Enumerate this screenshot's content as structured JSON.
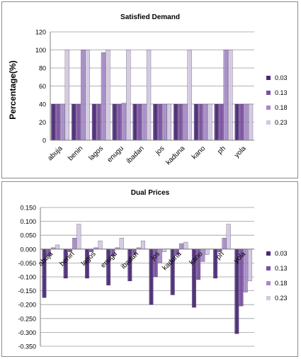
{
  "colors": {
    "s003": "#4a2a76",
    "s013": "#7a4f9e",
    "s018": "#a58bc7",
    "s023": "#d2c8e0",
    "grid": "#9a9a9a",
    "axis": "#7f7f7f"
  },
  "chart_data": [
    {
      "type": "bar",
      "title": "Satisfied Demand",
      "xlabel": "",
      "ylabel": "Percentage(%)",
      "ylim": [
        0,
        120
      ],
      "yticks": [
        "0",
        "20",
        "40",
        "60",
        "80",
        "100",
        "120"
      ],
      "grid": true,
      "legend": "right",
      "categories": [
        "abuja",
        "benin",
        "lagos",
        "enugu",
        "ibadan",
        "jos",
        "kaduna",
        "kano",
        "ph",
        "yola"
      ],
      "series": [
        {
          "name": "0.03",
          "values": [
            40,
            40,
            40,
            40,
            40,
            40,
            40,
            40,
            40,
            40
          ]
        },
        {
          "name": "0.13",
          "values": [
            40,
            40,
            40,
            40,
            40,
            40,
            40,
            40,
            40,
            40
          ]
        },
        {
          "name": "0.18",
          "values": [
            40,
            100,
            97,
            41,
            40,
            40,
            40,
            40,
            100,
            40
          ]
        },
        {
          "name": "0.23",
          "values": [
            100,
            100,
            100,
            100,
            100,
            40,
            100,
            40,
            100,
            40
          ]
        }
      ]
    },
    {
      "type": "bar",
      "title": "Dual Prices",
      "xlabel": "",
      "ylabel": "",
      "ylim": [
        -0.35,
        0.15
      ],
      "yticks": [
        "-0.350",
        "-0.300",
        "-0.250",
        "-0.200",
        "-0.150",
        "-0.100",
        "-0.050",
        "0.000",
        "0.050",
        "0.100",
        "0.150"
      ],
      "grid": true,
      "legend": "right",
      "categories": [
        "abuja",
        "benin",
        "lagos",
        "enugu",
        "ibadan",
        "jos",
        "kaduna",
        "kano",
        "ph",
        "yola"
      ],
      "series": [
        {
          "name": "0.03",
          "values": [
            -0.175,
            -0.105,
            -0.105,
            -0.13,
            -0.115,
            -0.2,
            -0.165,
            -0.21,
            -0.105,
            -0.305
          ]
        },
        {
          "name": "0.13",
          "values": [
            -0.025,
            -0.01,
            -0.01,
            -0.025,
            -0.02,
            -0.1,
            -0.02,
            -0.11,
            -0.01,
            -0.205
          ]
        },
        {
          "name": "0.18",
          "values": [
            0.005,
            0.04,
            0.005,
            0.005,
            0.005,
            -0.05,
            0.02,
            -0.045,
            0.04,
            -0.155
          ]
        },
        {
          "name": "0.23",
          "values": [
            0.015,
            0.09,
            0.03,
            0.04,
            0.03,
            -0.01,
            0.025,
            -0.02,
            0.09,
            -0.115
          ]
        }
      ]
    }
  ]
}
